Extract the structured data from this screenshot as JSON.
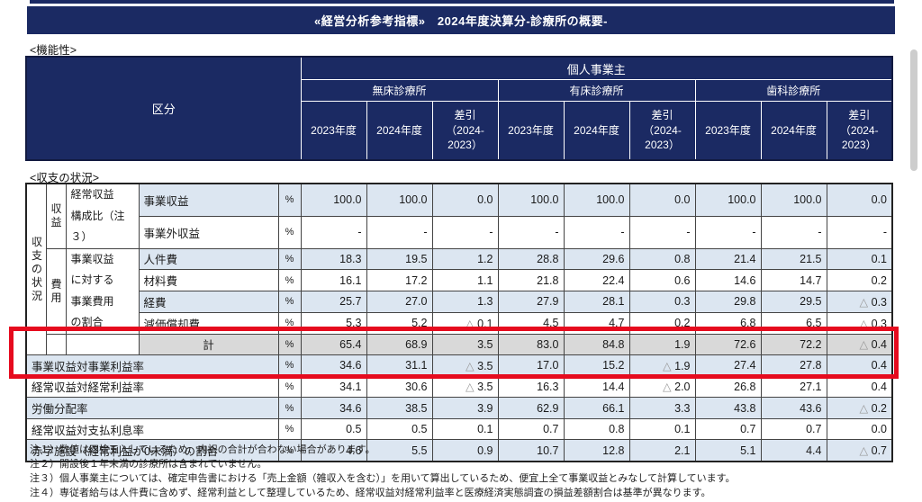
{
  "banner": {
    "title": "«経営分析参考指標»　2024年度決算分-診療所の概要-"
  },
  "sections": {
    "functionality": "<機能性>",
    "balance": "<収支の状況>"
  },
  "colors": {
    "navy": "#1b2a63",
    "row_blue": "#dce6f1",
    "total_gray": "#d9d9d9",
    "highlight_red": "#e60b1e"
  },
  "header": {
    "category": "区分",
    "entity": "個人事業主",
    "groups": [
      "無床診療所",
      "有床診療所",
      "歯科診療所"
    ],
    "years": [
      "2023年度",
      "2024年度",
      "差引\n（2024-\n2023）"
    ]
  },
  "statement": {
    "unit": "%",
    "side": {
      "outer": "収支の状況",
      "income": "収益",
      "income_sub": "経常収益\n構成比（注３）",
      "expense": "費用",
      "expense_sub": "事業収益\nに対する\n事業費用\nの割合"
    },
    "rows": [
      {
        "id": "jigyo-shueki",
        "label": "事業収益",
        "kind": "item",
        "bg": "b",
        "values": [
          "100.0",
          "100.0",
          "0.0",
          "100.0",
          "100.0",
          "0.0",
          "100.0",
          "100.0",
          "0.0"
        ]
      },
      {
        "id": "jigyogai-shueki",
        "label": "事業外収益",
        "kind": "item",
        "bg": "w",
        "values": [
          "-",
          "-",
          "-",
          "-",
          "-",
          "-",
          "-",
          "-",
          "-"
        ]
      },
      {
        "id": "jinkenhi",
        "label": "人件費",
        "kind": "item",
        "bg": "b",
        "values": [
          "18.3",
          "19.5",
          "1.2",
          "28.8",
          "29.6",
          "0.8",
          "21.4",
          "21.5",
          "0.1"
        ]
      },
      {
        "id": "zairyohi",
        "label": "材料費",
        "kind": "item",
        "bg": "w",
        "values": [
          "16.1",
          "17.2",
          "1.1",
          "21.8",
          "22.4",
          "0.6",
          "14.6",
          "14.7",
          "0.2"
        ]
      },
      {
        "id": "keihi",
        "label": "経費",
        "kind": "item",
        "bg": "b",
        "values": [
          "25.7",
          "27.0",
          "1.3",
          "27.9",
          "28.1",
          "0.3",
          "29.8",
          "29.5",
          "△ 0.3"
        ]
      },
      {
        "id": "genkashokyakuhi",
        "label": "減価償却費",
        "kind": "item",
        "bg": "w",
        "values": [
          "5.3",
          "5.2",
          "△ 0.1",
          "4.5",
          "4.7",
          "0.2",
          "6.8",
          "6.5",
          "△ 0.3"
        ]
      },
      {
        "id": "kei",
        "label": "計",
        "kind": "total",
        "bg": "g",
        "values": [
          "65.4",
          "68.9",
          "3.5",
          "83.0",
          "84.8",
          "1.9",
          "72.6",
          "72.2",
          "△ 0.4"
        ]
      },
      {
        "id": "jigyo-riekiritsu",
        "label": "事業収益対事業利益率",
        "kind": "full",
        "bg": "b",
        "highlight": true,
        "values": [
          "34.6",
          "31.1",
          "△ 3.5",
          "17.0",
          "15.2",
          "△ 1.9",
          "27.4",
          "27.8",
          "0.4"
        ]
      },
      {
        "id": "keijo-riekiritsu",
        "label": "経常収益対経常利益率",
        "kind": "full",
        "bg": "w",
        "highlight": true,
        "values": [
          "34.1",
          "30.6",
          "△ 3.5",
          "16.3",
          "14.4",
          "△ 2.0",
          "26.8",
          "27.1",
          "0.4"
        ]
      },
      {
        "id": "rodo-bunpairitsu",
        "label": "労働分配率",
        "kind": "full",
        "bg": "b",
        "values": [
          "34.6",
          "38.5",
          "3.9",
          "62.9",
          "66.1",
          "3.3",
          "43.8",
          "43.6",
          "△ 0.2"
        ]
      },
      {
        "id": "shiharai-risokuritsu",
        "label": "経常収益対支払利息率",
        "kind": "full",
        "bg": "w",
        "values": [
          "0.5",
          "0.5",
          "0.1",
          "0.7",
          "0.8",
          "0.1",
          "0.7",
          "0.7",
          "0.0"
        ]
      },
      {
        "id": "akaji-shisetsu",
        "label": "赤字施設（経常利益が0未満）の割合",
        "kind": "full",
        "bg": "b",
        "values": [
          "4.6",
          "5.5",
          "0.9",
          "10.7",
          "12.8",
          "2.1",
          "5.1",
          "4.4",
          "△ 0.7"
        ]
      }
    ]
  },
  "notes": [
    "注１）数値は四捨五入しているため、内訳の合計が合わない場合があります。",
    "注２）開設後１年未満の診療所は含まれていません。",
    "注３）個人事業主については、確定申告書における「売上金額（雑収入を含む）」を用いて算出しているため、便宜上全て事業収益とみなして計算しています。",
    "注４）専従者給与は人件費に含めず、経常利益として整理しているため、経常収益対経常利益率と医療経済実態調査の損益差額割合は基準が異なります。"
  ]
}
